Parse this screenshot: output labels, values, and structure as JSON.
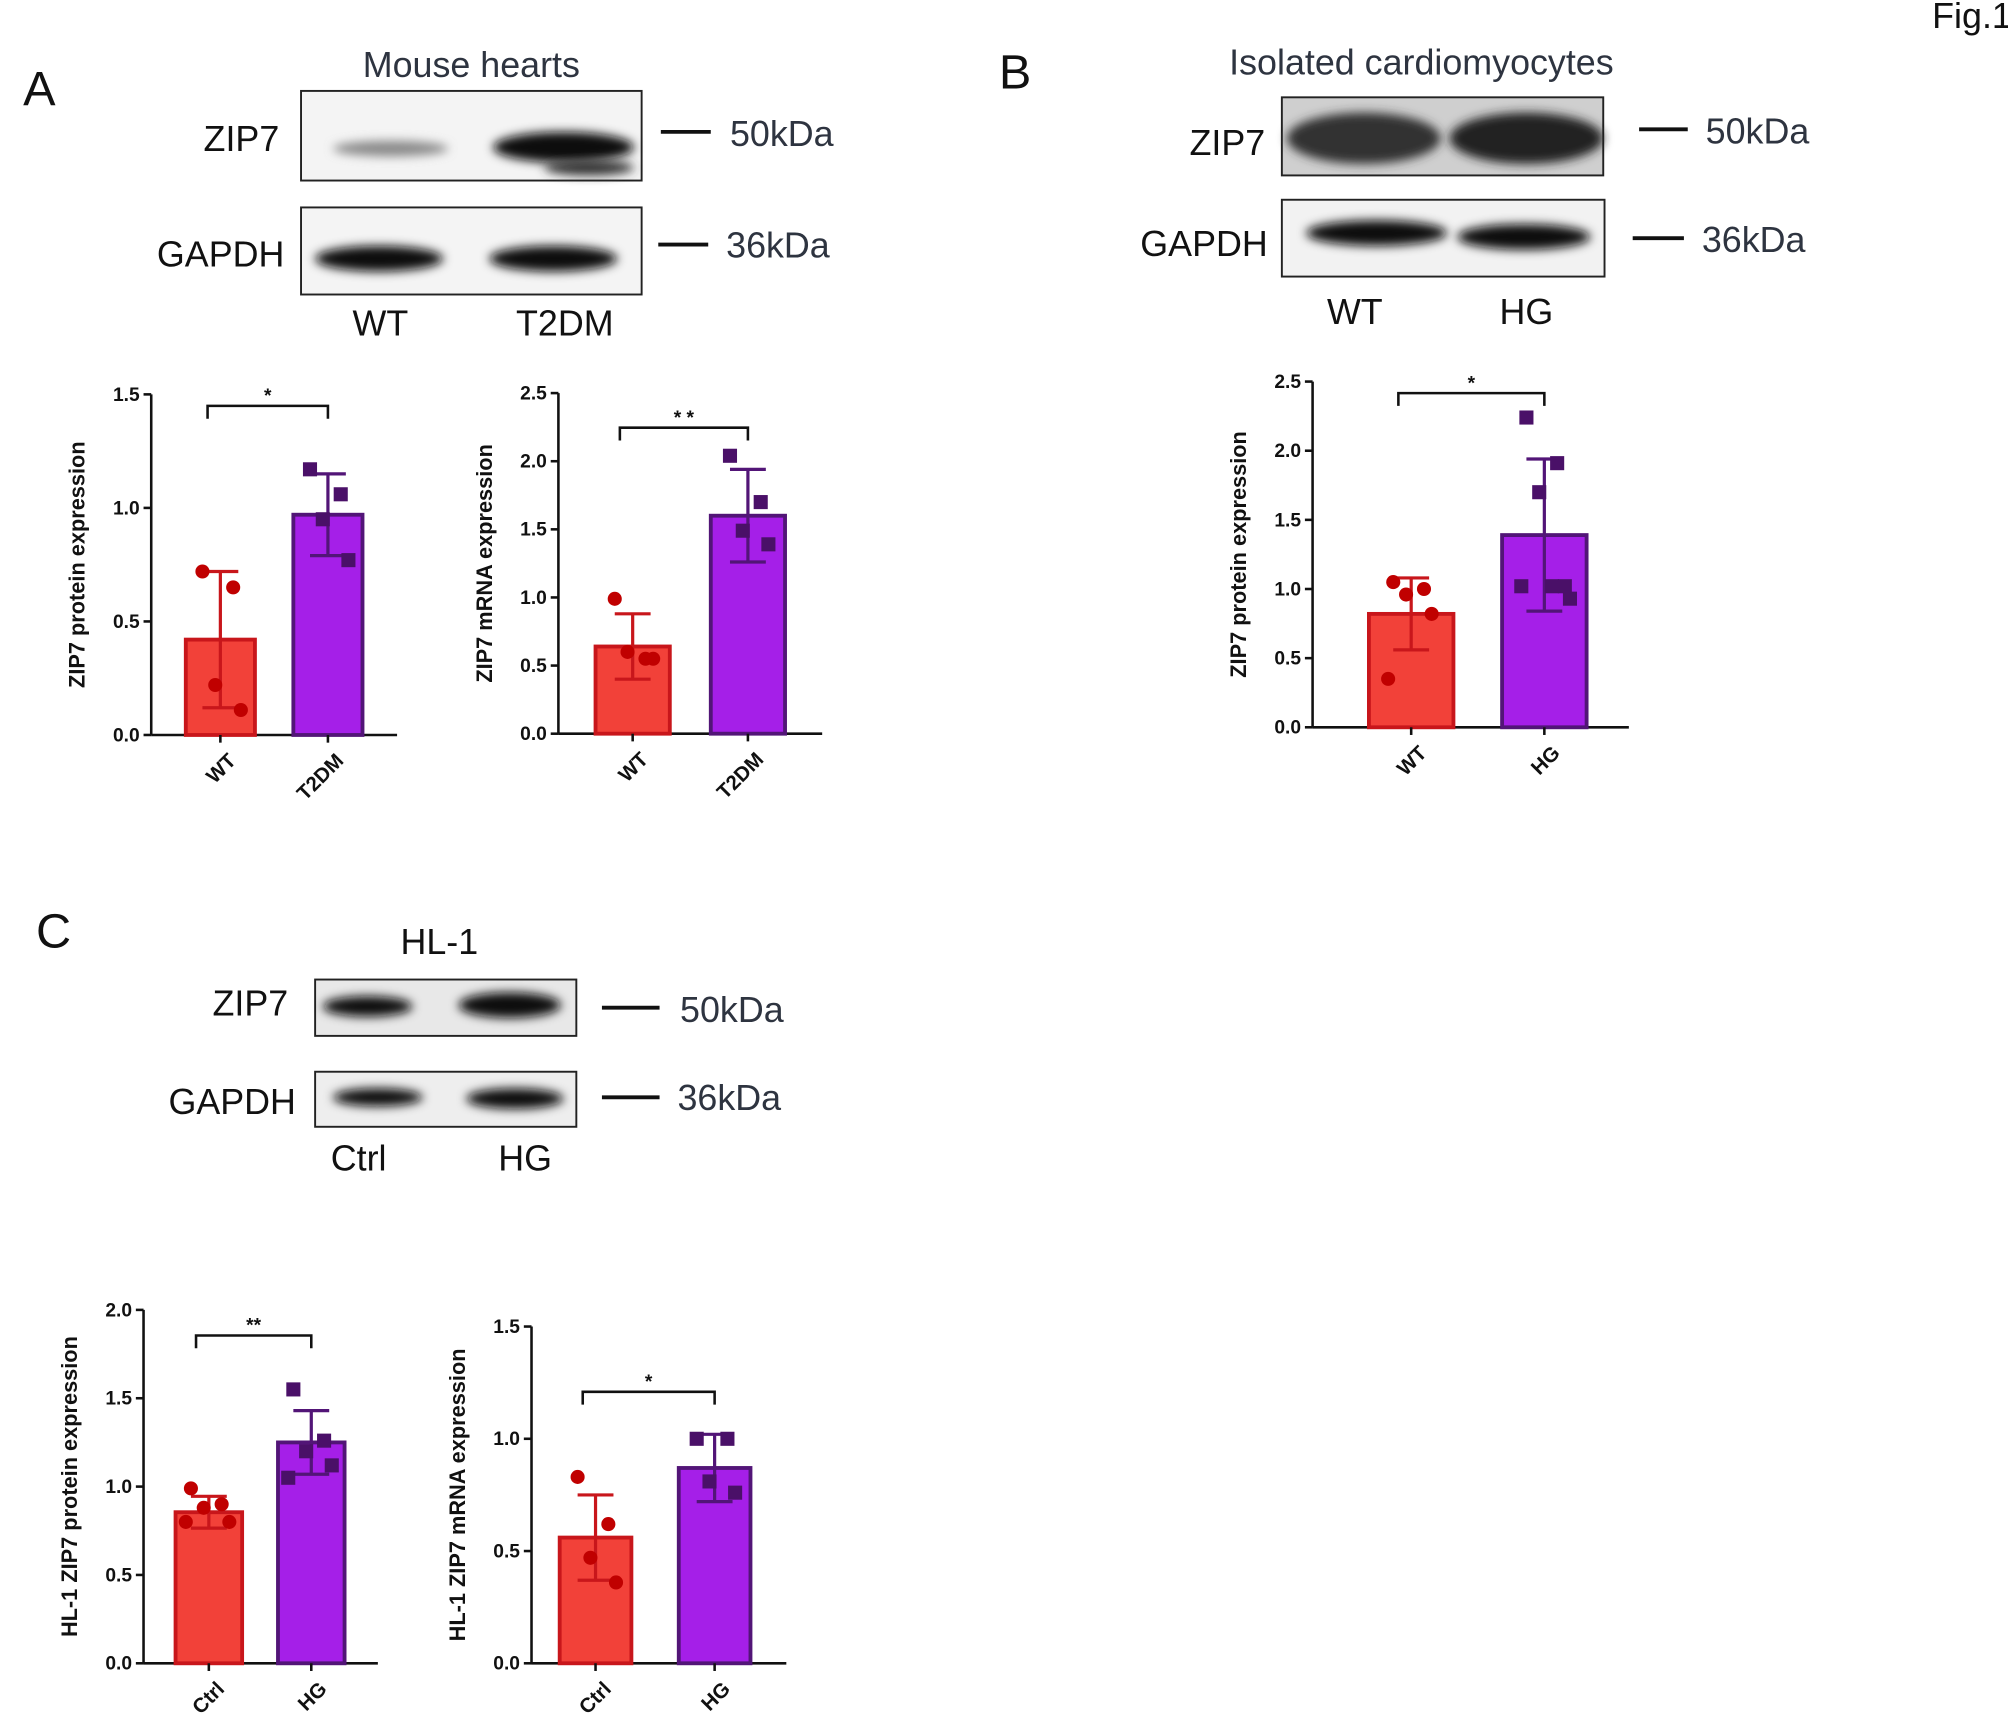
{
  "figure_label": "Fig.1",
  "blots": [
    {
      "letter": "A",
      "title": "Mouse hearts",
      "rows": [
        {
          "label": "ZIP7",
          "marker": "50kDa"
        },
        {
          "label": "GAPDH",
          "marker": "36kDa"
        }
      ],
      "lanes": [
        "WT",
        "T2DM"
      ]
    },
    {
      "letter": "B",
      "title": "Isolated  cardiomyocytes",
      "rows": [
        {
          "label": "ZIP7",
          "marker": "50kDa"
        },
        {
          "label": "GAPDH",
          "marker": "36kDa"
        }
      ],
      "lanes": [
        "WT",
        "HG"
      ]
    },
    {
      "letter": "C",
      "title": "HL-1",
      "rows": [
        {
          "label": "ZIP7",
          "marker": "50kDa"
        },
        {
          "label": "GAPDH",
          "marker": "36kDa"
        }
      ],
      "lanes": [
        "Ctrl",
        "HG"
      ]
    }
  ],
  "chart_data": [
    {
      "type": "bar",
      "y_label": "ZIP7 protein expression",
      "categories": [
        "WT",
        "T2DM"
      ],
      "values": [
        0.42,
        0.97
      ],
      "errors": [
        0.3,
        0.18
      ],
      "points": [
        [
          0.72,
          0.65,
          0.22,
          0.11
        ],
        [
          1.17,
          1.06,
          0.95,
          0.77
        ]
      ],
      "colors": [
        "#f24139",
        "#a51fe8"
      ],
      "edge_colors": [
        "#c8161b",
        "#521577"
      ],
      "point_colors": [
        "#c00000",
        "#4a1068"
      ],
      "ylim": [
        0,
        1.5
      ],
      "yticks": [
        {
          "value": 0,
          "label": "0.0"
        },
        0.5,
        {
          "value": 1,
          "label": "1.0"
        },
        1.5
      ],
      "significance": "*"
    },
    {
      "type": "bar",
      "y_label": "ZIP7 mRNA expression",
      "categories": [
        "WT",
        "T2DM"
      ],
      "values": [
        0.64,
        1.6
      ],
      "errors": [
        0.24,
        0.34
      ],
      "points": [
        [
          0.99,
          0.55,
          0.6,
          0.55
        ],
        [
          2.04,
          1.7,
          1.49,
          1.39
        ]
      ],
      "colors": [
        "#f24139",
        "#a51fe8"
      ],
      "edge_colors": [
        "#c8161b",
        "#521577"
      ],
      "point_colors": [
        "#c00000",
        "#4a1068"
      ],
      "ylim": [
        0,
        2.5
      ],
      "yticks": [
        {
          "value": 0,
          "label": "0.0"
        },
        0.5,
        {
          "value": 1,
          "label": "1.0"
        },
        1.5,
        {
          "value": 2,
          "label": "2.0"
        },
        2.5
      ],
      "significance": "* *"
    },
    {
      "type": "bar",
      "y_label": "ZIP7 protein expression",
      "categories": [
        "WT",
        "HG"
      ],
      "values": [
        0.82,
        1.39
      ],
      "errors": [
        0.26,
        0.55
      ],
      "points": [
        [
          1.05,
          1.0,
          0.96,
          0.82,
          0.35
        ],
        [
          2.24,
          1.91,
          1.7,
          1.02,
          1.02,
          1.02,
          0.93
        ]
      ],
      "colors": [
        "#f24139",
        "#a51fe8"
      ],
      "edge_colors": [
        "#c8161b",
        "#521577"
      ],
      "point_colors": [
        "#c00000",
        "#4a1068"
      ],
      "ylim": [
        0,
        2.5
      ],
      "yticks": [
        {
          "value": 0,
          "label": "0.0"
        },
        0.5,
        {
          "value": 1,
          "label": "1.0"
        },
        1.5,
        {
          "value": 2,
          "label": "2.0"
        },
        2.5
      ],
      "significance": "*"
    },
    {
      "type": "bar",
      "y_label": "HL-1 ZIP7 protein expression",
      "categories": [
        "Ctrl",
        "HG"
      ],
      "values": [
        0.855,
        1.25
      ],
      "errors": [
        0.09,
        0.18
      ],
      "points": [
        [
          0.99,
          0.9,
          0.88,
          0.8,
          0.8
        ],
        [
          1.55,
          1.26,
          1.2,
          1.12,
          1.05
        ]
      ],
      "colors": [
        "#f24139",
        "#a51fe8"
      ],
      "edge_colors": [
        "#c8161b",
        "#521577"
      ],
      "point_colors": [
        "#c00000",
        "#4a1068"
      ],
      "ylim": [
        0,
        2
      ],
      "yticks": [
        {
          "value": 0,
          "label": "0.0"
        },
        0.5,
        {
          "value": 1,
          "label": "1.0"
        },
        1.5,
        {
          "value": 2,
          "label": "2.0"
        }
      ],
      "significance": "**"
    },
    {
      "type": "bar",
      "y_label": "HL-1 ZIP7 mRNA expression",
      "categories": [
        "Ctrl",
        "HG"
      ],
      "values": [
        0.56,
        0.87
      ],
      "errors": [
        0.19,
        0.15
      ],
      "points": [
        [
          0.83,
          0.62,
          0.47,
          0.36
        ],
        [
          1.0,
          1.0,
          0.81,
          0.76
        ]
      ],
      "colors": [
        "#f24139",
        "#a51fe8"
      ],
      "edge_colors": [
        "#c8161b",
        "#521577"
      ],
      "point_colors": [
        "#c00000",
        "#4a1068"
      ],
      "ylim": [
        0,
        1.5
      ],
      "yticks": [
        {
          "value": 0,
          "label": "0.0"
        },
        0.5,
        {
          "value": 1,
          "label": "1.0"
        },
        1.5
      ],
      "significance": "*"
    }
  ]
}
